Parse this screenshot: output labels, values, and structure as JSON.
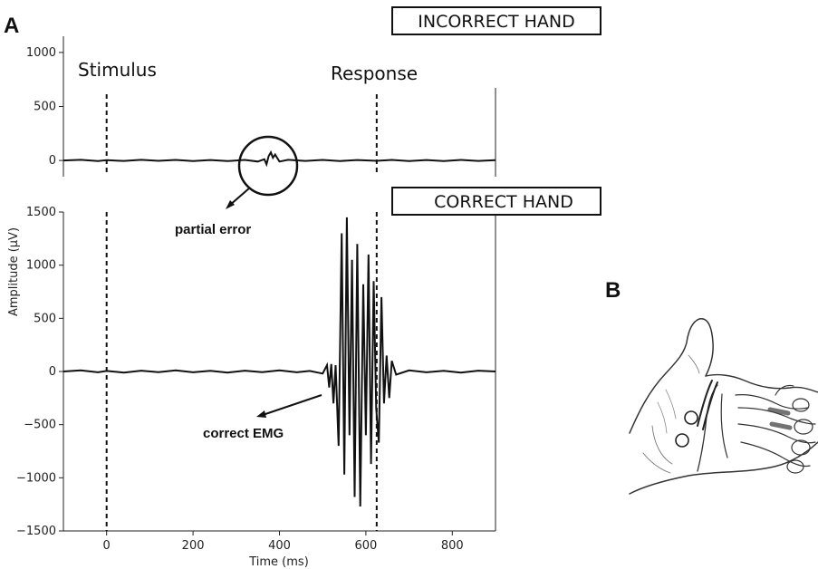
{
  "panels": {
    "a_label": "A",
    "b_label": "B"
  },
  "chart_data": [
    {
      "type": "line",
      "title": "INCORRECT HAND",
      "xlabel": "",
      "ylabel": "",
      "xlim": [
        -100,
        900
      ],
      "ylim": [
        -150,
        1150
      ],
      "y_ticks": [
        0,
        500,
        1000
      ],
      "events": [
        {
          "label": "Stimulus",
          "x": 0
        },
        {
          "label": "Response",
          "x": 625
        }
      ],
      "annotation": {
        "text": "partial error",
        "x": 375,
        "y": 0
      },
      "series": [
        {
          "x": [
            -100,
            -60,
            -20,
            0,
            40,
            80,
            120,
            160,
            200,
            240,
            280,
            320,
            350,
            365,
            370,
            375,
            380,
            385,
            390,
            400,
            420,
            460,
            500,
            540,
            580,
            625,
            660,
            700,
            740,
            780,
            820,
            860,
            900
          ],
          "y": [
            0,
            6,
            -5,
            3,
            -4,
            6,
            -3,
            5,
            -5,
            4,
            -6,
            5,
            -10,
            12,
            -35,
            40,
            75,
            25,
            55,
            -10,
            6,
            -4,
            5,
            -5,
            4,
            -3,
            5,
            -5,
            4,
            -6,
            5,
            -4,
            3
          ]
        }
      ]
    },
    {
      "type": "line",
      "title": "CORRECT HAND",
      "xlabel": "Time (ms)",
      "ylabel": "Amplitude (μV)",
      "xlim": [
        -100,
        900
      ],
      "ylim": [
        -1500,
        1500
      ],
      "x_ticks": [
        0,
        200,
        400,
        600,
        800
      ],
      "y_ticks": [
        -1500,
        -1000,
        -500,
        0,
        500,
        1000,
        1500
      ],
      "events": [
        {
          "label": "Stimulus",
          "x": 0
        },
        {
          "label": "Response",
          "x": 625
        }
      ],
      "annotation": {
        "text": "correct EMG",
        "x": 355,
        "y": -250
      },
      "series": [
        {
          "x": [
            -100,
            -60,
            -20,
            0,
            40,
            80,
            120,
            160,
            200,
            240,
            280,
            320,
            360,
            400,
            440,
            470,
            500,
            510,
            515,
            520,
            525,
            530,
            537,
            544,
            550,
            556,
            562,
            568,
            574,
            580,
            587,
            594,
            600,
            606,
            612,
            618,
            624,
            630,
            636,
            642,
            648,
            654,
            660,
            670,
            700,
            740,
            780,
            820,
            860,
            900
          ],
          "y": [
            0,
            10,
            -8,
            5,
            -10,
            8,
            -6,
            10,
            -8,
            6,
            -10,
            8,
            -6,
            10,
            -8,
            5,
            -20,
            60,
            -150,
            70,
            -300,
            60,
            -700,
            1300,
            -970,
            1450,
            -600,
            1050,
            -1180,
            1200,
            -1270,
            820,
            -600,
            1100,
            -870,
            850,
            -350,
            -670,
            700,
            -300,
            150,
            -250,
            100,
            -30,
            10,
            -8,
            6,
            -10,
            8,
            0
          ]
        }
      ]
    }
  ]
}
